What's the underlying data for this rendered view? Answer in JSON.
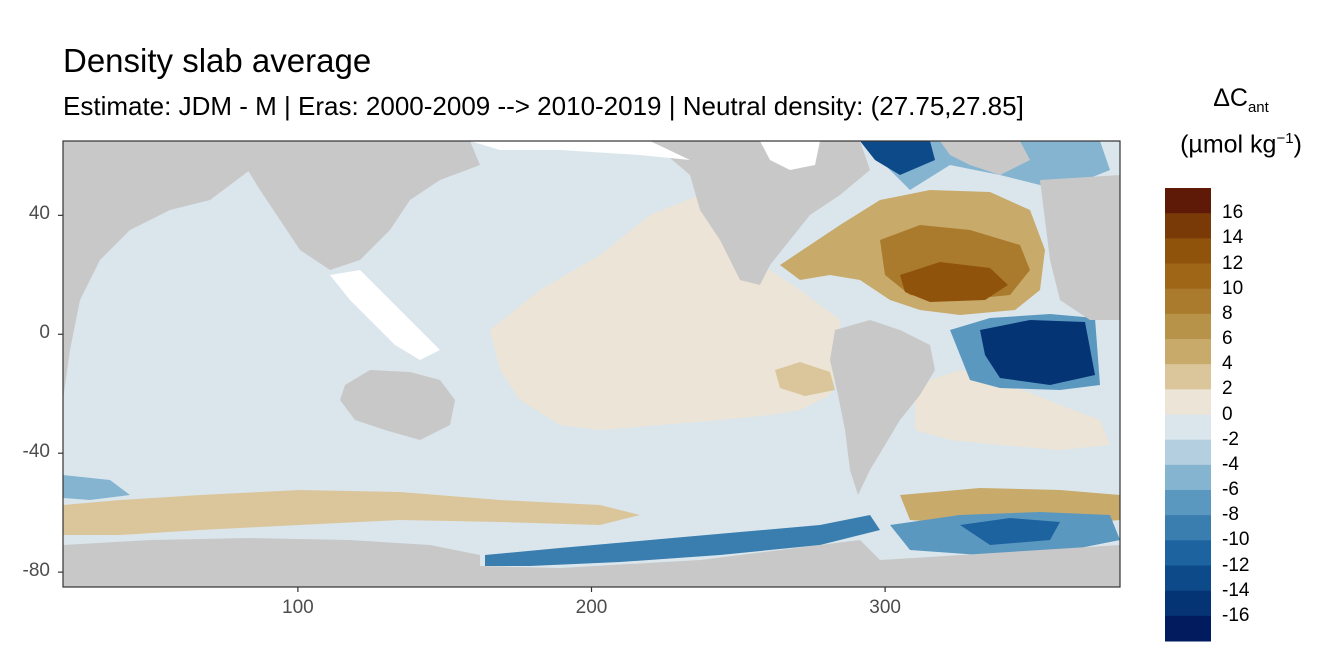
{
  "title": "Density slab average",
  "subtitle": "Estimate: JDM - M | Eras: 2000-2009 --> 2010-2019 | Neutral density: (27.75,27.85]",
  "legend": {
    "title_main": "ΔC",
    "title_sub": "ant",
    "unit_main": "(µmol kg",
    "unit_sup": "−1",
    "unit_close": ")",
    "labels": [
      "16",
      "14",
      "12",
      "10",
      "8",
      "6",
      "4",
      "2",
      "0",
      "-2",
      "-4",
      "-6",
      "-8",
      "-10",
      "-12",
      "-14",
      "-16"
    ],
    "colors": [
      "#5e1a06",
      "#7a3a08",
      "#8f530c",
      "#9e6616",
      "#aa7b2d",
      "#b79349",
      "#c8aa6b",
      "#dbc69c",
      "#ece4d6",
      "#dbe6ec",
      "#b4cfdf",
      "#85b4d1",
      "#5b98c0",
      "#3a7eb0",
      "#1d639f",
      "#0d4a8a",
      "#053475",
      "#021b5e"
    ]
  },
  "chart_data": {
    "type": "heatmap",
    "title": "Density slab average",
    "xlim": [
      20,
      380
    ],
    "ylim": [
      -85,
      65
    ],
    "x_ticks": [
      100,
      200,
      300
    ],
    "y_ticks": [
      40,
      0,
      -40,
      -80
    ],
    "land_color": "#c8c8c8",
    "colorbar_range": [
      -18,
      18
    ],
    "colorbar_step": 2
  }
}
